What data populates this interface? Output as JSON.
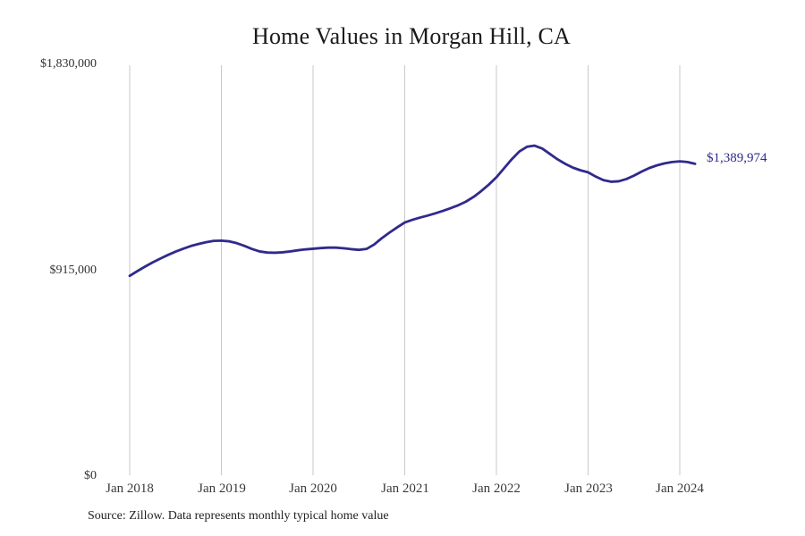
{
  "chart_data": {
    "type": "line",
    "title": "Home Values in Morgan Hill, CA",
    "source_note": "Source: Zillow. Data represents monthly typical home value",
    "end_label": "$1,389,974",
    "latest_value": 1389974,
    "y_tick_labels": [
      "$1,830,000",
      "$915,000",
      "$0"
    ],
    "y_tick_values": [
      1830000,
      915000,
      0
    ],
    "x_tick_labels": [
      "Jan 2018",
      "Jan 2019",
      "Jan 2020",
      "Jan 2021",
      "Jan 2022",
      "Jan 2023",
      "Jan 2024"
    ],
    "xlabel": "",
    "ylabel": "",
    "ylim": [
      0,
      1830000
    ],
    "x_start": "2018-01",
    "x_end": "2024-03",
    "x_interval": "monthly",
    "grid": "vertical-only",
    "legend": "none",
    "colors": {
      "line": "#2f2a8c",
      "grid": "#c9c9c9",
      "title_text": "#1a1a1a",
      "axis_text": "#3a3a3a",
      "end_label_text": "#2f2a8c",
      "background": "#ffffff"
    },
    "series": [
      {
        "name": "Monthly typical home value",
        "values": [
          890000,
          911000,
          931000,
          950000,
          967000,
          983000,
          998000,
          1011000,
          1023000,
          1032000,
          1040000,
          1046000,
          1047000,
          1044000,
          1036000,
          1024000,
          1010000,
          999000,
          994000,
          993000,
          995000,
          999000,
          1004000,
          1008000,
          1011000,
          1014000,
          1016000,
          1016000,
          1013000,
          1009000,
          1006000,
          1010000,
          1030000,
          1058000,
          1083000,
          1106000,
          1128000,
          1140000,
          1150000,
          1159000,
          1169000,
          1180000,
          1192000,
          1205000,
          1221000,
          1242000,
          1268000,
          1297000,
          1330000,
          1370000,
          1410000,
          1445000,
          1466000,
          1471000,
          1458000,
          1434000,
          1410000,
          1390000,
          1373000,
          1361000,
          1352000,
          1333000,
          1317000,
          1310000,
          1312000,
          1322000,
          1337000,
          1355000,
          1371000,
          1383000,
          1392000,
          1398000,
          1401000,
          1398000,
          1389974
        ]
      }
    ]
  }
}
